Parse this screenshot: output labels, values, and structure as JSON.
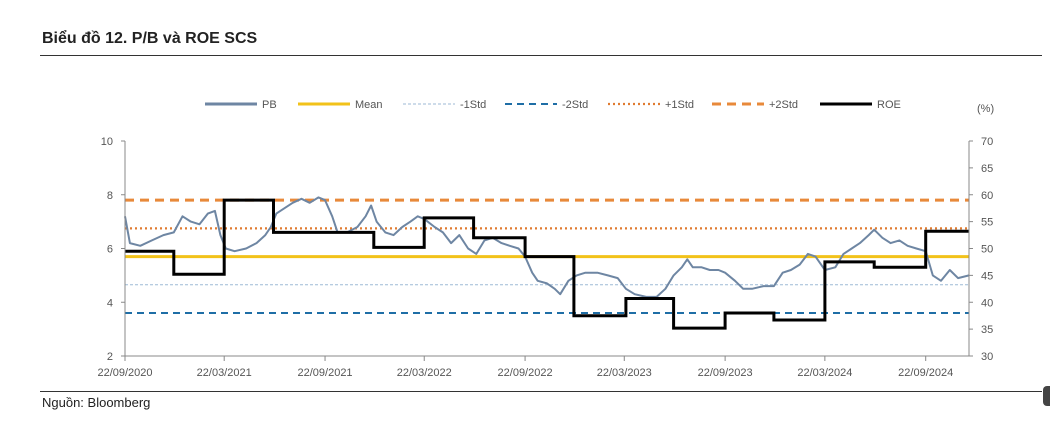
{
  "header": {
    "title": "Biểu đồ 12. P/B và ROE SCS"
  },
  "footer": {
    "source": "Nguồn: Bloomberg"
  },
  "colors": {
    "pb": "#6e86a3",
    "mean": "#f2c21a",
    "std_minus1": "#9ebad6",
    "std_minus2": "#1f6ea6",
    "std_plus1": "#e07b30",
    "std_plus2": "#e8893a",
    "roe": "#000000"
  },
  "chart_data": {
    "type": "line",
    "title": "Biểu đồ 12. P/B và ROE SCS",
    "xlabel": "",
    "ylabel": "",
    "y2label": "(%)",
    "x_ticks": [
      "22/09/2020",
      "22/03/2021",
      "22/09/2021",
      "22/03/2022",
      "22/09/2022",
      "22/03/2023",
      "22/09/2023",
      "22/03/2024",
      "22/09/2024"
    ],
    "x_range": [
      "2020-09-22",
      "2024-12-10"
    ],
    "ylim": [
      2,
      10
    ],
    "y_ticks": [
      2,
      4,
      6,
      8,
      10
    ],
    "y2lim": [
      30,
      70
    ],
    "y2_ticks": [
      30,
      35,
      40,
      45,
      50,
      55,
      60,
      65,
      70
    ],
    "legend_position": "top",
    "legend": [
      "PB",
      "Mean",
      "-1Std",
      "-2Std",
      "+1Std",
      "+2Std",
      "ROE"
    ],
    "reference_lines": [
      {
        "name": "Mean",
        "value": 5.7
      },
      {
        "name": "-1Std",
        "value": 4.65
      },
      {
        "name": "-2Std",
        "value": 3.6
      },
      {
        "name": "+1Std",
        "value": 6.75
      },
      {
        "name": "+2Std",
        "value": 7.8
      }
    ],
    "series": [
      {
        "name": "PB",
        "axis": "left",
        "points": [
          [
            "2020-09-22",
            7.2
          ],
          [
            "2020-10-01",
            6.2
          ],
          [
            "2020-10-20",
            6.1
          ],
          [
            "2020-11-10",
            6.3
          ],
          [
            "2020-12-01",
            6.5
          ],
          [
            "2020-12-20",
            6.6
          ],
          [
            "2021-01-05",
            7.2
          ],
          [
            "2021-01-20",
            7.0
          ],
          [
            "2021-02-05",
            6.9
          ],
          [
            "2021-02-20",
            7.3
          ],
          [
            "2021-03-05",
            7.4
          ],
          [
            "2021-03-15",
            6.5
          ],
          [
            "2021-03-25",
            6.0
          ],
          [
            "2021-04-10",
            5.9
          ],
          [
            "2021-05-01",
            6.0
          ],
          [
            "2021-05-20",
            6.2
          ],
          [
            "2021-06-05",
            6.5
          ],
          [
            "2021-06-15",
            6.8
          ],
          [
            "2021-06-25",
            7.3
          ],
          [
            "2021-07-10",
            7.5
          ],
          [
            "2021-07-25",
            7.7
          ],
          [
            "2021-08-10",
            7.85
          ],
          [
            "2021-08-25",
            7.7
          ],
          [
            "2021-09-10",
            7.9
          ],
          [
            "2021-09-22",
            7.8
          ],
          [
            "2021-10-05",
            7.2
          ],
          [
            "2021-10-15",
            6.6
          ],
          [
            "2021-11-01",
            6.6
          ],
          [
            "2021-11-20",
            6.8
          ],
          [
            "2021-12-05",
            7.2
          ],
          [
            "2021-12-15",
            7.6
          ],
          [
            "2021-12-25",
            7.0
          ],
          [
            "2022-01-10",
            6.6
          ],
          [
            "2022-01-25",
            6.5
          ],
          [
            "2022-02-10",
            6.8
          ],
          [
            "2022-02-25",
            7.0
          ],
          [
            "2022-03-10",
            7.2
          ],
          [
            "2022-03-22",
            7.1
          ],
          [
            "2022-04-10",
            6.8
          ],
          [
            "2022-04-25",
            6.6
          ],
          [
            "2022-05-10",
            6.2
          ],
          [
            "2022-05-25",
            6.5
          ],
          [
            "2022-06-10",
            6.0
          ],
          [
            "2022-06-25",
            5.8
          ],
          [
            "2022-07-10",
            6.3
          ],
          [
            "2022-07-25",
            6.4
          ],
          [
            "2022-08-10",
            6.2
          ],
          [
            "2022-08-25",
            6.1
          ],
          [
            "2022-09-10",
            6.0
          ],
          [
            "2022-09-22",
            5.7
          ],
          [
            "2022-10-05",
            5.1
          ],
          [
            "2022-10-15",
            4.8
          ],
          [
            "2022-11-01",
            4.7
          ],
          [
            "2022-11-15",
            4.5
          ],
          [
            "2022-11-25",
            4.3
          ],
          [
            "2022-12-10",
            4.8
          ],
          [
            "2022-12-25",
            5.0
          ],
          [
            "2023-01-10",
            5.1
          ],
          [
            "2023-02-01",
            5.1
          ],
          [
            "2023-02-20",
            5.0
          ],
          [
            "2023-03-10",
            4.9
          ],
          [
            "2023-03-25",
            4.5
          ],
          [
            "2023-04-10",
            4.3
          ],
          [
            "2023-05-01",
            4.2
          ],
          [
            "2023-05-20",
            4.2
          ],
          [
            "2023-06-05",
            4.5
          ],
          [
            "2023-06-20",
            5.0
          ],
          [
            "2023-07-05",
            5.3
          ],
          [
            "2023-07-15",
            5.6
          ],
          [
            "2023-07-25",
            5.3
          ],
          [
            "2023-08-10",
            5.3
          ],
          [
            "2023-08-25",
            5.2
          ],
          [
            "2023-09-10",
            5.2
          ],
          [
            "2023-09-22",
            5.1
          ],
          [
            "2023-10-10",
            4.8
          ],
          [
            "2023-10-25",
            4.5
          ],
          [
            "2023-11-10",
            4.5
          ],
          [
            "2023-12-01",
            4.6
          ],
          [
            "2023-12-20",
            4.6
          ],
          [
            "2024-01-05",
            5.1
          ],
          [
            "2024-01-20",
            5.2
          ],
          [
            "2024-02-05",
            5.4
          ],
          [
            "2024-02-20",
            5.8
          ],
          [
            "2024-03-05",
            5.7
          ],
          [
            "2024-03-22",
            5.2
          ],
          [
            "2024-04-10",
            5.3
          ],
          [
            "2024-04-25",
            5.8
          ],
          [
            "2024-05-10",
            6.0
          ],
          [
            "2024-05-25",
            6.2
          ],
          [
            "2024-06-10",
            6.5
          ],
          [
            "2024-06-20",
            6.7
          ],
          [
            "2024-07-05",
            6.4
          ],
          [
            "2024-07-20",
            6.2
          ],
          [
            "2024-08-05",
            6.3
          ],
          [
            "2024-08-20",
            6.1
          ],
          [
            "2024-09-05",
            6.0
          ],
          [
            "2024-09-22",
            5.9
          ],
          [
            "2024-10-05",
            5.0
          ],
          [
            "2024-10-20",
            4.8
          ],
          [
            "2024-11-05",
            5.2
          ],
          [
            "2024-11-20",
            4.9
          ],
          [
            "2024-12-10",
            5.0
          ]
        ]
      },
      {
        "name": "ROE",
        "axis": "right",
        "step": true,
        "points": [
          [
            "2020-09-22",
            49.5
          ],
          [
            "2020-12-20",
            45.2
          ],
          [
            "2021-03-22",
            59.0
          ],
          [
            "2021-06-20",
            53.0
          ],
          [
            "2021-12-20",
            50.2
          ],
          [
            "2022-03-22",
            55.7
          ],
          [
            "2022-06-20",
            52.0
          ],
          [
            "2022-09-22",
            48.5
          ],
          [
            "2022-12-20",
            37.5
          ],
          [
            "2023-03-25",
            40.7
          ],
          [
            "2023-06-20",
            35.2
          ],
          [
            "2023-09-22",
            38.0
          ],
          [
            "2023-12-20",
            36.7
          ],
          [
            "2024-03-22",
            47.5
          ],
          [
            "2024-06-20",
            46.5
          ],
          [
            "2024-09-22",
            53.2
          ],
          [
            "2024-12-10",
            53.2
          ]
        ]
      }
    ]
  }
}
